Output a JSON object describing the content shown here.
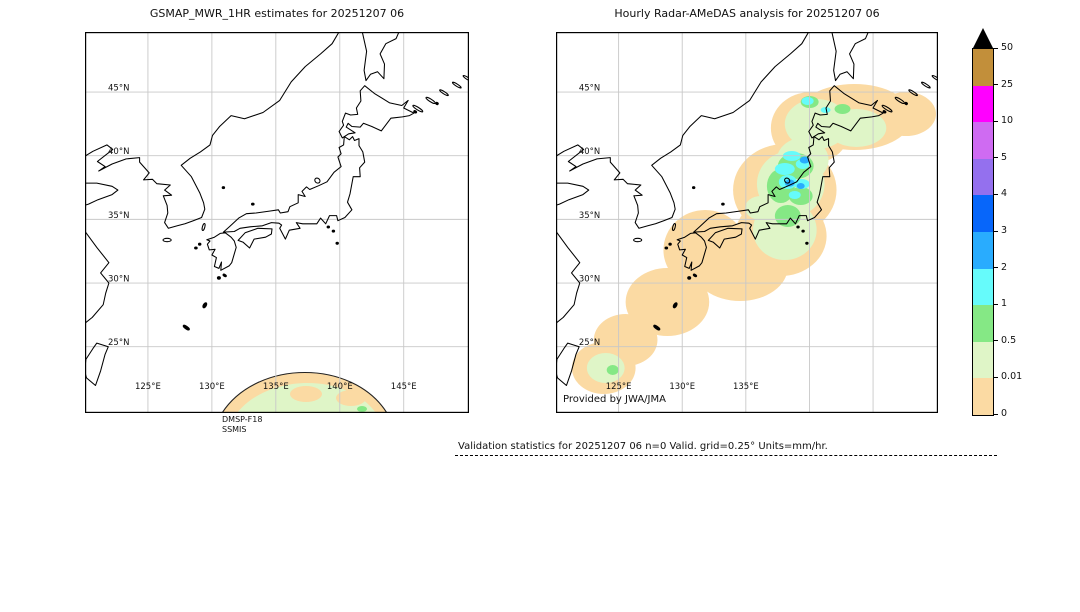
{
  "left_panel": {
    "title": "GSMAP_MWR_1HR estimates for 20251207 06",
    "sensor_line1": "DMSP-F18",
    "sensor_line2": "SSMIS"
  },
  "right_panel": {
    "title": "Hourly Radar-AMeDAS analysis for 20251207 06",
    "credit": "Provided by JWA/JMA"
  },
  "map_labels": {
    "lat": [
      "45°N",
      "40°N",
      "35°N",
      "30°N",
      "25°N"
    ],
    "lon_left": [
      "125°E",
      "130°E",
      "135°E",
      "140°E",
      "145°E"
    ],
    "lon_right": [
      "125°E",
      "130°E",
      "135°E"
    ]
  },
  "colorbar": {
    "tick_labels": [
      "50",
      "25",
      "10",
      "5",
      "4",
      "3",
      "2",
      "1",
      "0.5",
      "0.01",
      "0"
    ],
    "segment_colors_top_to_bottom": [
      "#c28f3a",
      "#ff00ff",
      "#cf6bf2",
      "#9470ee",
      "#0766fa",
      "#29acfe",
      "#66fbfb",
      "#85e885",
      "#dff5c7",
      "#fbdaa3"
    ],
    "overflow_color": "#000000",
    "grid_color": "#c8c8c8",
    "coast_color": "#000000"
  },
  "footer": {
    "validation_text": "Validation statistics for 20251207 06  n=0 Valid. grid=0.25° Units=mm/hr."
  }
}
